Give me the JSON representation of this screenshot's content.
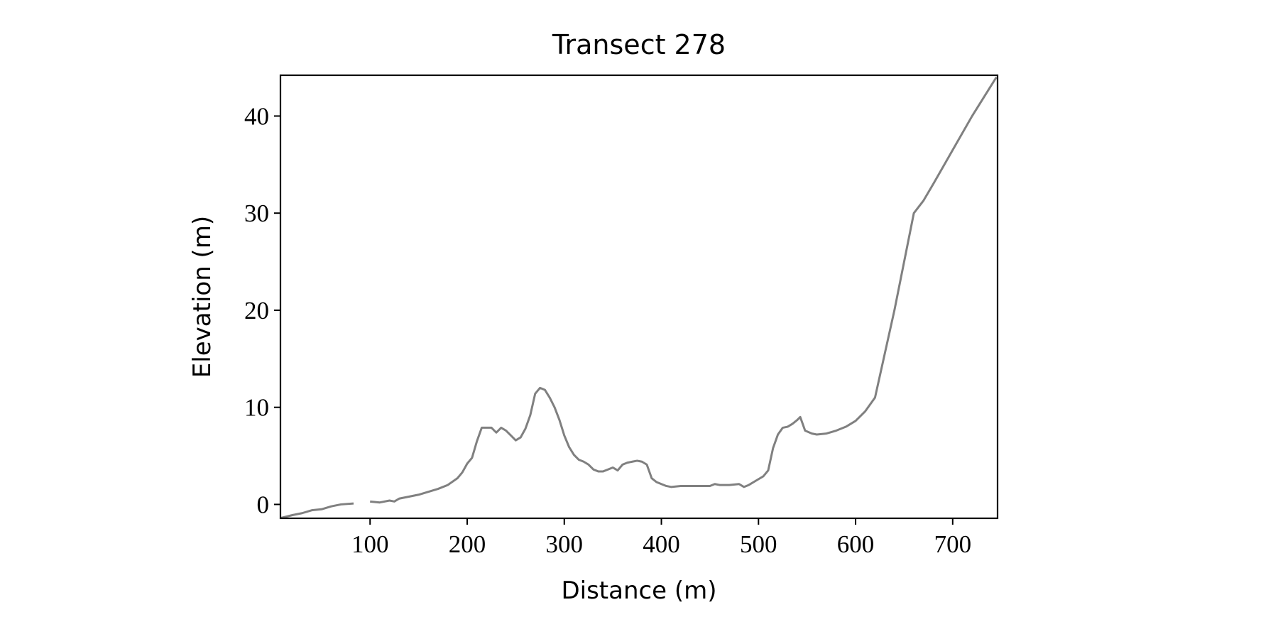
{
  "chart_data": {
    "type": "line",
    "title": "Transect 278",
    "xlabel": "Distance (m)",
    "ylabel": "Elevation (m)",
    "x": [
      8,
      20,
      30,
      40,
      50,
      60,
      70,
      83,
      90,
      100,
      110,
      120,
      125,
      130,
      140,
      150,
      160,
      170,
      180,
      190,
      195,
      200,
      205,
      210,
      215,
      220,
      225,
      230,
      235,
      240,
      245,
      250,
      255,
      260,
      265,
      270,
      275,
      280,
      285,
      290,
      295,
      300,
      305,
      310,
      315,
      320,
      325,
      330,
      335,
      340,
      345,
      350,
      355,
      360,
      365,
      370,
      375,
      380,
      385,
      390,
      395,
      400,
      405,
      410,
      420,
      430,
      440,
      450,
      455,
      460,
      470,
      480,
      485,
      490,
      500,
      505,
      510,
      515,
      520,
      525,
      530,
      535,
      540,
      543,
      548,
      555,
      560,
      570,
      580,
      590,
      600,
      610,
      620,
      630,
      640,
      650,
      660,
      670,
      680,
      700,
      720,
      745
    ],
    "series": [
      {
        "color": "#808080",
        "values": [
          -1.4,
          -1.1,
          -0.9,
          -0.6,
          -0.5,
          -0.2,
          0,
          0.1,
          null,
          0.3,
          0.2,
          0.4,
          0.3,
          0.6,
          0.8,
          1.0,
          1.3,
          1.6,
          2.0,
          2.7,
          3.3,
          4.2,
          4.8,
          6.5,
          7.9,
          7.9,
          7.9,
          7.4,
          7.9,
          7.6,
          7.1,
          6.6,
          6.9,
          7.8,
          9.2,
          11.4,
          12.0,
          11.8,
          11.0,
          10.0,
          8.7,
          7.1,
          5.9,
          5.1,
          4.6,
          4.4,
          4.1,
          3.6,
          3.4,
          3.4,
          3.6,
          3.8,
          3.5,
          4.1,
          4.3,
          4.4,
          4.5,
          4.4,
          4.1,
          2.7,
          2.3,
          2.1,
          1.9,
          1.8,
          1.9,
          1.9,
          1.9,
          1.9,
          2.1,
          2.0,
          2.0,
          2.1,
          1.8,
          2.0,
          2.6,
          2.9,
          3.5,
          5.8,
          7.2,
          7.9,
          8.0,
          8.3,
          8.7,
          9.0,
          7.6,
          7.3,
          7.2,
          7.3,
          7.6,
          8.0,
          8.6,
          9.6,
          11.0,
          15.5,
          20.0,
          25.0,
          30.0,
          31.3,
          33.0,
          36.5,
          40.0,
          44.0
        ]
      }
    ],
    "xlim": [
      7.7,
      746.2
    ],
    "ylim": [
      -1.43,
      44.2
    ],
    "xticks": [
      100,
      200,
      300,
      400,
      500,
      600,
      700
    ],
    "yticks": [
      0,
      10,
      20,
      30,
      40
    ]
  }
}
